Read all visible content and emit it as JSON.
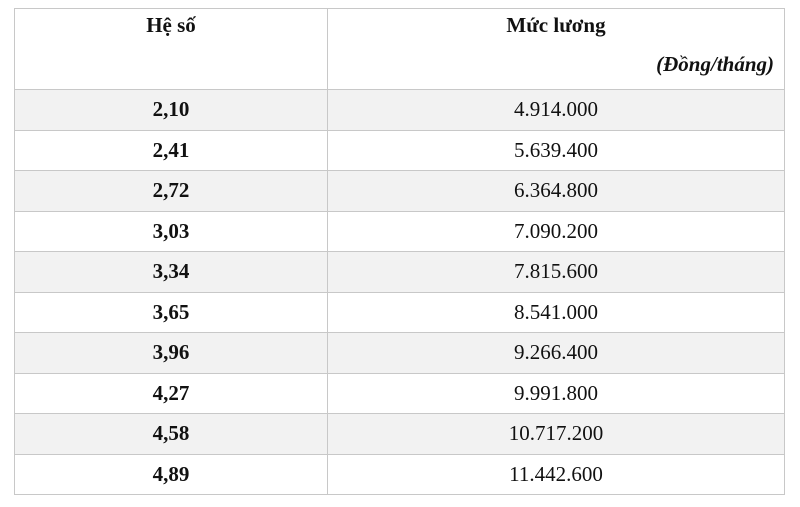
{
  "table": {
    "header": [
      "Hệ số",
      "Mức lương"
    ],
    "unit": "(Đồng/tháng)",
    "rows": [
      [
        "2,10",
        "4.914.000"
      ],
      [
        "2,41",
        "5.639.400"
      ],
      [
        "2,72",
        "6.364.800"
      ],
      [
        "3,03",
        "7.090.200"
      ],
      [
        "3,34",
        "7.815.600"
      ],
      [
        "3,65",
        "8.541.000"
      ],
      [
        "3,96",
        "9.266.400"
      ],
      [
        "4,27",
        "9.991.800"
      ],
      [
        "4,58",
        "10.717.200"
      ],
      [
        "4,89",
        "11.442.600"
      ]
    ]
  }
}
